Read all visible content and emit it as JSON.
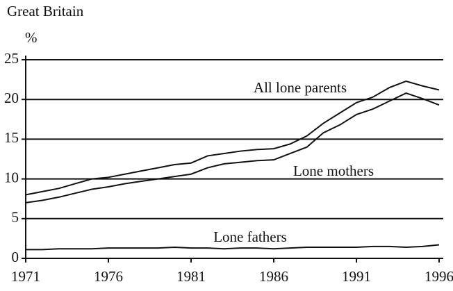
{
  "chart_data": {
    "type": "line",
    "title": "Great Britain",
    "y_unit": "%",
    "x": [
      1971,
      1972,
      1973,
      1974,
      1975,
      1976,
      1977,
      1978,
      1979,
      1980,
      1981,
      1982,
      1983,
      1984,
      1985,
      1986,
      1987,
      1988,
      1989,
      1990,
      1991,
      1992,
      1993,
      1994,
      1995,
      1996
    ],
    "series": [
      {
        "name": "All lone parents",
        "color": "#111111",
        "values": [
          8,
          8.4,
          8.8,
          9.4,
          10,
          10.2,
          10.6,
          11,
          11.4,
          11.8,
          12,
          12.9,
          13.2,
          13.5,
          13.7,
          13.8,
          14.4,
          15.4,
          17,
          18.3,
          19.6,
          20.3,
          21.5,
          22.3,
          21.7,
          21.2
        ]
      },
      {
        "name": "Lone mothers",
        "color": "#111111",
        "values": [
          7,
          7.3,
          7.7,
          8.2,
          8.7,
          9,
          9.4,
          9.7,
          10,
          10.3,
          10.6,
          11.4,
          11.9,
          12.1,
          12.3,
          12.4,
          13.2,
          14,
          15.8,
          16.8,
          18.1,
          18.8,
          19.8,
          20.8,
          20.1,
          19.3
        ]
      },
      {
        "name": "Lone fathers",
        "color": "#111111",
        "values": [
          1.1,
          1.1,
          1.2,
          1.2,
          1.2,
          1.3,
          1.3,
          1.3,
          1.3,
          1.4,
          1.3,
          1.3,
          1.2,
          1.3,
          1.3,
          1.2,
          1.3,
          1.4,
          1.4,
          1.4,
          1.4,
          1.5,
          1.5,
          1.4,
          1.5,
          1.7
        ]
      }
    ],
    "xlim": [
      1971,
      1996
    ],
    "xticks": [
      1971,
      1976,
      1981,
      1986,
      1991,
      1996
    ],
    "ylim": [
      0,
      25
    ],
    "yticks": [
      0,
      5,
      10,
      15,
      20,
      25
    ],
    "grid": true
  }
}
